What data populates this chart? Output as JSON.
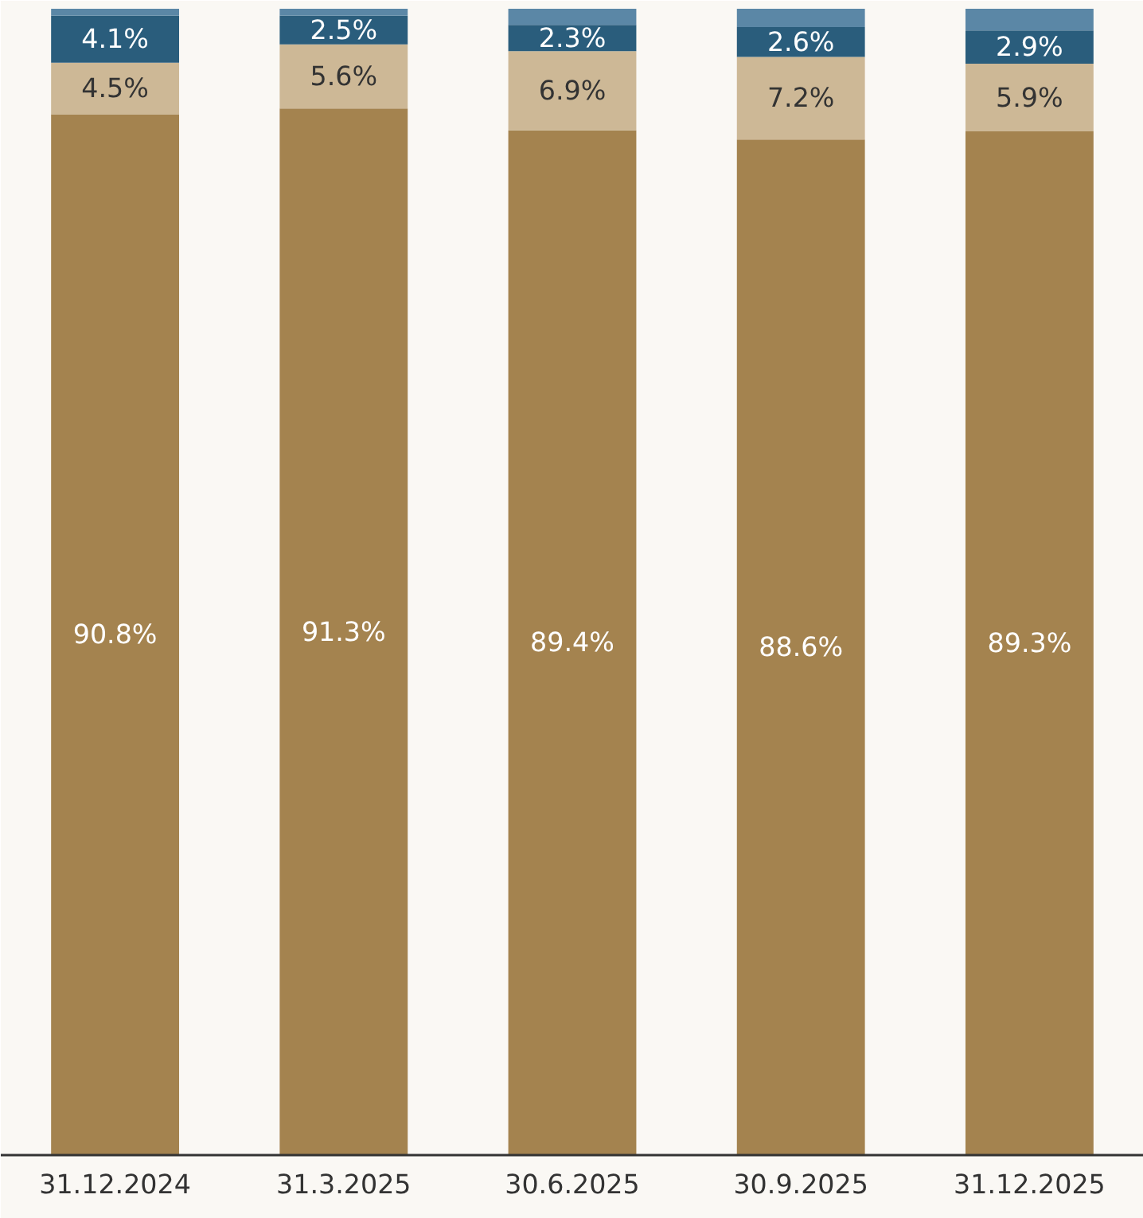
{
  "chart_data": {
    "type": "bar",
    "stacked": true,
    "categories": [
      "31.12.2024",
      "31.3.2025",
      "30.6.2025",
      "30.9.2025",
      "31.12.2025"
    ],
    "series": [
      {
        "color": "#a4834f",
        "values": [
          90.8,
          91.3,
          89.4,
          88.6,
          89.3
        ],
        "value_labels": [
          "90.8%",
          "91.3%",
          "89.4%",
          "88.6%",
          "89.3%"
        ]
      },
      {
        "color": "#cdb896",
        "values": [
          4.5,
          5.6,
          6.9,
          7.2,
          5.9
        ],
        "value_labels": [
          "4.5%",
          "5.6%",
          "6.9%",
          "7.2%",
          "5.9%"
        ]
      },
      {
        "color": "#2a5d7c",
        "values": [
          4.1,
          2.5,
          2.3,
          2.6,
          2.9
        ],
        "value_labels": [
          "4.1%",
          "2.5%",
          "2.3%",
          "2.6%",
          "2.9%"
        ]
      },
      {
        "color": "#5b87a6",
        "values": [
          0.6,
          0.6,
          1.4,
          1.6,
          1.9
        ]
      }
    ],
    "grid": false
  }
}
